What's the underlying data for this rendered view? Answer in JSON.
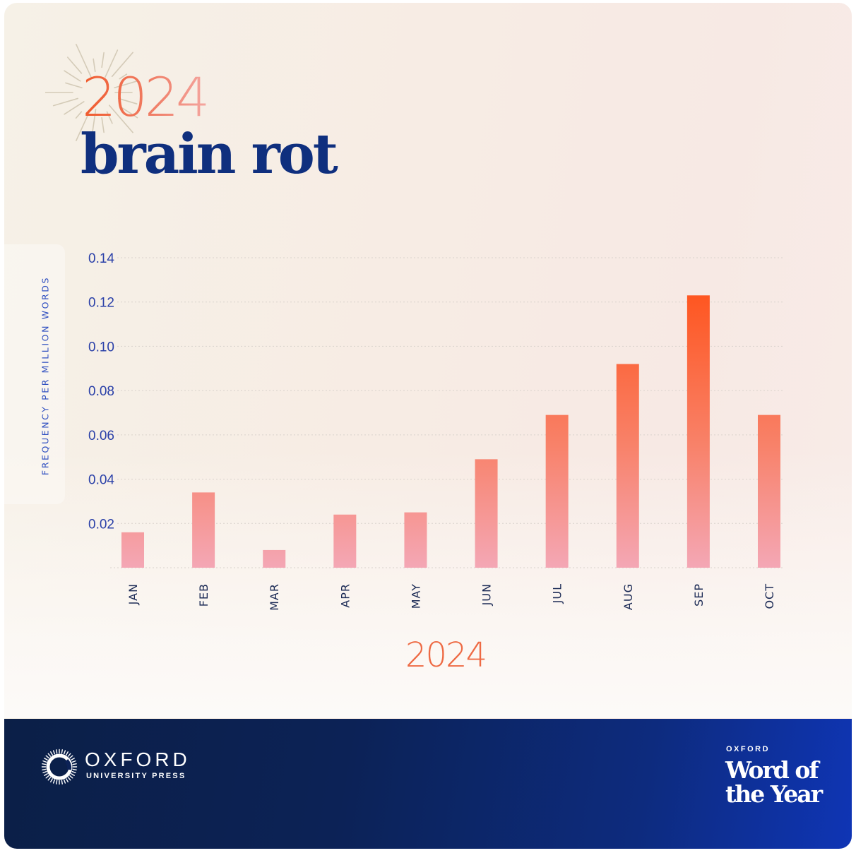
{
  "header": {
    "year": "2024",
    "word": "brain rot"
  },
  "colors": {
    "accent_orange": "#f05a2c",
    "bar_pink": "#f4a7b5",
    "bar_orange": "#fe5722",
    "title_navy": "#0f2f7e",
    "footer_navy": "#0b1f47",
    "footer_blue": "#0f35b5"
  },
  "chart_data": {
    "type": "bar",
    "title": "",
    "xlabel": "2024",
    "ylabel": "FREQUENCY PER MILLION WORDS",
    "categories": [
      "JAN",
      "FEB",
      "MAR",
      "APR",
      "MAY",
      "JUN",
      "JUL",
      "AUG",
      "SEP",
      "OCT"
    ],
    "values": [
      0.016,
      0.034,
      0.008,
      0.024,
      0.025,
      0.049,
      0.069,
      0.092,
      0.123,
      0.069
    ],
    "yticks": [
      "0.02",
      "0.04",
      "0.06",
      "0.08",
      "0.10",
      "0.12",
      "0.14"
    ],
    "ylim": [
      0,
      0.14
    ],
    "grid": true,
    "legend": "none"
  },
  "footer": {
    "publisher_name": "OXFORD",
    "publisher_sub": "UNIVERSITY PRESS",
    "award_brand": "OXFORD",
    "award_line1": "Word of",
    "award_line2": "the Year",
    "logo_icon": "oxford-ring-logo-icon"
  }
}
